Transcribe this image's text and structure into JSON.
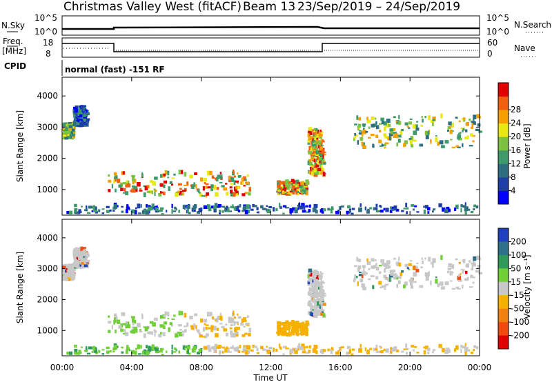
{
  "header": {
    "title": "Christmas Valley West (fitACF)",
    "beam": "Beam 13",
    "dates": "23/Sep/2019 – 24/Sep/2019"
  },
  "panels": {
    "nsky": {
      "label": "N.Sky",
      "left_ticks": [
        "10^5",
        "10^0"
      ],
      "right_label": "N.Search",
      "right_ticks": [
        "10^5",
        "10^0"
      ]
    },
    "freq": {
      "label_line1": "Freq.",
      "label_line2": "[MHz]",
      "left_ticks": [
        "18",
        "8"
      ],
      "right_label": "Nave",
      "right_ticks": [
        "60",
        "0"
      ]
    },
    "cpid": {
      "label": "CPID",
      "text": "normal (fast) -151 RF"
    }
  },
  "chart_data": [
    {
      "type": "heatmap",
      "name": "power",
      "ylabel": "Slant Range [km]",
      "xlabel": "",
      "yticks": [
        1000,
        2000,
        3000,
        4000
      ],
      "ylim": [
        180,
        4600
      ],
      "colorbar": {
        "label": "Power [dB]",
        "ticks": [
          "4",
          "8",
          "12",
          "16",
          "20",
          "24",
          "28"
        ],
        "colors": [
          "#0000ff",
          "#1f3fa8",
          "#2f6e80",
          "#3f9a6b",
          "#7cc142",
          "#e8e814",
          "#f6a000",
          "#f06010",
          "#e00000"
        ]
      },
      "regions": [
        {
          "t": [
            0.0,
            0.6
          ],
          "r": [
            2600,
            3050
          ],
          "level": "mid"
        },
        {
          "t": [
            0.6,
            1.4
          ],
          "r": [
            3000,
            3600
          ],
          "level": "low"
        },
        {
          "t": [
            2.6,
            10.8
          ],
          "r": [
            750,
            1500
          ],
          "level": "high"
        },
        {
          "t": [
            12.3,
            14.0
          ],
          "r": [
            800,
            1200
          ],
          "level": "high"
        },
        {
          "t": [
            14.1,
            15.0
          ],
          "r": [
            1400,
            2900
          ],
          "level": "high"
        },
        {
          "t": [
            16.7,
            24.0
          ],
          "r": [
            2300,
            3300
          ],
          "level": "mid"
        },
        {
          "t": [
            0.0,
            24.0
          ],
          "r": [
            200,
            450
          ],
          "level": "low"
        }
      ]
    },
    {
      "type": "heatmap",
      "name": "velocity",
      "ylabel": "Slant Range [km]",
      "xlabel": "Time UT",
      "xticks": [
        "00:00",
        "04:00",
        "08:00",
        "12:00",
        "16:00",
        "20:00",
        "00:00"
      ],
      "yticks": [
        1000,
        2000,
        3000,
        4000
      ],
      "ylim": [
        180,
        4600
      ],
      "colorbar": {
        "label": "Velocity [m s⁻¹]",
        "ticks": [
          "200",
          "100",
          "50",
          "15",
          "-15",
          "-50",
          "-100",
          "-200"
        ],
        "colors": [
          "#2040c0",
          "#2e6f8a",
          "#2f9a5a",
          "#6fcf35",
          "#c8c8c8",
          "#f5b000",
          "#f08010",
          "#f04a10",
          "#e00000"
        ]
      }
    }
  ]
}
